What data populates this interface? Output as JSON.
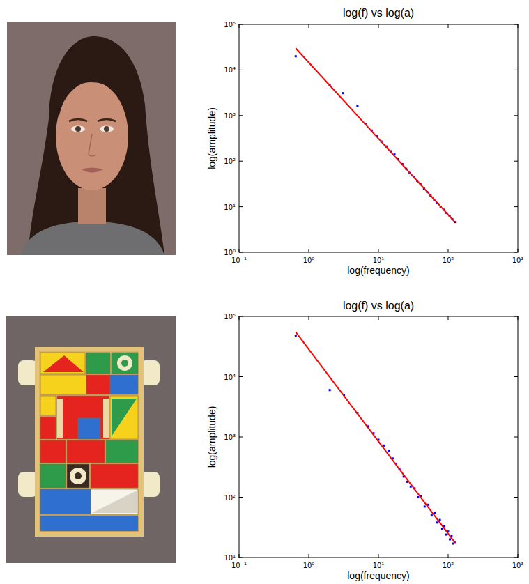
{
  "chart_data": [
    {
      "type": "scatter",
      "title": "log(f) vs log(a)",
      "x_label": "log(frequency)",
      "y_label": "log(amplitude)",
      "log": true,
      "xlim": [
        0.1,
        1000
      ],
      "xticks": [
        {
          "value": 0.1,
          "label": "10⁻¹"
        },
        {
          "value": 1,
          "label": "10⁰"
        },
        {
          "value": 10,
          "label": "10¹"
        },
        {
          "value": 100,
          "label": "10²"
        },
        {
          "value": 1000,
          "label": "10³"
        }
      ],
      "ylim": [
        1,
        100000
      ],
      "yticks": [
        {
          "value": 1,
          "label": "10⁰"
        },
        {
          "value": 10,
          "label": "10¹"
        },
        {
          "value": 100,
          "label": "10²"
        },
        {
          "value": 1000,
          "label": "10³"
        },
        {
          "value": 10000,
          "label": "10⁴"
        },
        {
          "value": 100000,
          "label": "10⁵"
        }
      ],
      "series": [
        {
          "type": "scatter",
          "color": "#0000ff",
          "marker": "square",
          "x": [
            0.65,
            2,
            3.1,
            5,
            6.5,
            8,
            9.5,
            11,
            13,
            15,
            17,
            19,
            22,
            25,
            28,
            32,
            36,
            40,
            45,
            50,
            56,
            63,
            70,
            78,
            86,
            95,
            105,
            115,
            125
          ],
          "values": [
            20000,
            4600,
            3100,
            1650,
            650,
            470,
            350,
            270,
            210,
            165,
            140,
            110,
            86,
            68,
            55,
            45,
            37,
            31,
            25,
            21,
            17.5,
            14,
            12,
            10,
            8.6,
            7.3,
            6.2,
            5.3,
            4.6
          ]
        },
        {
          "type": "line",
          "color": "#ff0000",
          "line_style": "solid",
          "x": [
            0.65,
            125
          ],
          "values": [
            30000,
            4.6
          ]
        }
      ]
    },
    {
      "type": "scatter",
      "title": "log(f) vs log(a)",
      "x_label": "log(frequency)",
      "y_label": "log(amplitude)",
      "log": true,
      "xlim": [
        0.1,
        1000
      ],
      "xticks": [
        {
          "value": 0.1,
          "label": "10⁻¹"
        },
        {
          "value": 1,
          "label": "10⁰"
        },
        {
          "value": 10,
          "label": "10¹"
        },
        {
          "value": 100,
          "label": "10²"
        },
        {
          "value": 1000,
          "label": "10³"
        }
      ],
      "ylim": [
        10,
        100000
      ],
      "yticks": [
        {
          "value": 10,
          "label": "10¹"
        },
        {
          "value": 100,
          "label": "10²"
        },
        {
          "value": 1000,
          "label": "10³"
        },
        {
          "value": 10000,
          "label": "10⁴"
        },
        {
          "value": 100000,
          "label": "10⁵"
        }
      ],
      "series": [
        {
          "type": "scatter",
          "color": "#0000ff",
          "marker": "square",
          "x": [
            0.65,
            2,
            3.2,
            5,
            7,
            8.5,
            10,
            12,
            14,
            16,
            18,
            20,
            23,
            26,
            29,
            33,
            37,
            41,
            46,
            52,
            58,
            64,
            70,
            76,
            82,
            88,
            94,
            100,
            106,
            112,
            118,
            124
          ],
          "values": [
            47000,
            6000,
            5000,
            2500,
            1500,
            1150,
            900,
            720,
            580,
            440,
            360,
            290,
            220,
            180,
            150,
            140,
            100,
            105,
            70,
            75,
            50,
            55,
            38,
            42,
            30,
            33,
            24,
            27,
            20,
            23,
            17,
            18
          ]
        },
        {
          "type": "line",
          "color": "#ff0000",
          "line_style": "solid",
          "x": [
            0.65,
            125
          ],
          "values": [
            55000,
            17.7
          ]
        }
      ]
    }
  ]
}
